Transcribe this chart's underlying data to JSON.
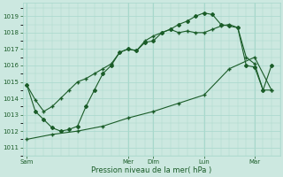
{
  "xlabel": "Pression niveau de la mer( hPa )",
  "ylim": [
    1010.5,
    1019.8
  ],
  "yticks": [
    1011,
    1012,
    1013,
    1014,
    1015,
    1016,
    1017,
    1018,
    1019
  ],
  "bg_color": "#cce8e0",
  "grid_color": "#a8d8cc",
  "line_color": "#1a5c28",
  "day_labels": [
    "Sam",
    "Mer",
    "Dim",
    "Lun",
    "Mar"
  ],
  "day_tick_x": [
    0,
    12,
    15,
    21,
    27
  ],
  "total_x_steps": 30,
  "line1_x": [
    0,
    1,
    2,
    3,
    4,
    5,
    6,
    7,
    8,
    9,
    10,
    11,
    12,
    13,
    14,
    15,
    16,
    17,
    18,
    19,
    20,
    21,
    22,
    23,
    24,
    25,
    26,
    27,
    28,
    29
  ],
  "line1_y": [
    1014.8,
    1013.9,
    1013.2,
    1013.5,
    1014.0,
    1014.5,
    1015.0,
    1015.2,
    1015.5,
    1015.8,
    1016.1,
    1016.8,
    1017.0,
    1016.9,
    1017.5,
    1017.8,
    1018.0,
    1018.2,
    1018.0,
    1018.1,
    1018.0,
    1018.0,
    1018.2,
    1018.4,
    1018.5,
    1018.3,
    1016.5,
    1016.1,
    1014.5,
    1014.5
  ],
  "line2_x": [
    0,
    1,
    2,
    3,
    4,
    5,
    6,
    7,
    8,
    9,
    10,
    11,
    12,
    13,
    14,
    15,
    16,
    17,
    18,
    19,
    20,
    21,
    22,
    23,
    24,
    25,
    26,
    27,
    28,
    29
  ],
  "line2_y": [
    1014.8,
    1013.2,
    1012.7,
    1012.2,
    1012.0,
    1012.1,
    1012.3,
    1013.5,
    1014.5,
    1015.5,
    1016.0,
    1016.8,
    1017.0,
    1016.9,
    1017.4,
    1017.5,
    1018.0,
    1018.2,
    1018.5,
    1018.7,
    1019.0,
    1019.2,
    1019.1,
    1018.5,
    1018.4,
    1018.3,
    1016.0,
    1015.9,
    1014.5,
    1016.0
  ],
  "line3_x": [
    0,
    3,
    6,
    9,
    12,
    15,
    18,
    21,
    24,
    27,
    29
  ],
  "line3_y": [
    1011.5,
    1011.8,
    1012.0,
    1012.3,
    1012.8,
    1013.2,
    1013.7,
    1014.2,
    1015.8,
    1016.5,
    1014.5
  ],
  "xlim": [
    -0.5,
    30
  ],
  "minor_xtick_interval": 1
}
